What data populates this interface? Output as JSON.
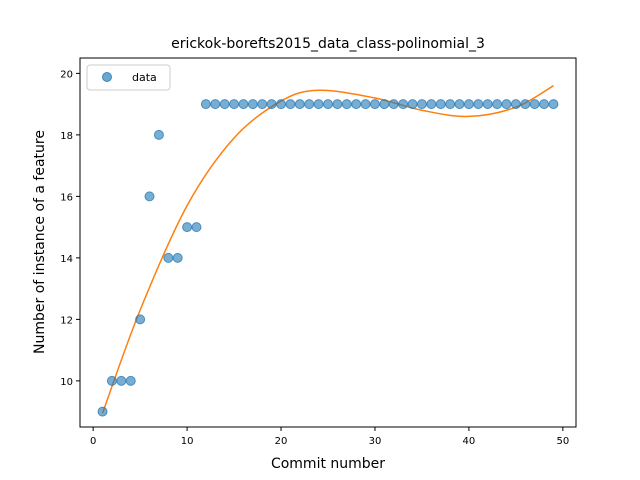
{
  "chart_data": {
    "type": "scatter",
    "title": "erickok-borefts2015_data_class-polinomial_3",
    "xlabel": "Commit number",
    "ylabel": "Number of instance of a feature",
    "xlim": [
      -1.4,
      51.4
    ],
    "ylim": [
      8.5,
      20.5
    ],
    "xticks": [
      0,
      10,
      20,
      30,
      40,
      50
    ],
    "yticks": [
      10,
      12,
      14,
      16,
      18,
      20
    ],
    "legend": {
      "position": "top-left",
      "entries": [
        "data"
      ]
    },
    "series": [
      {
        "name": "data",
        "kind": "scatter",
        "color": "#1f77b4",
        "x": [
          1,
          2,
          3,
          4,
          5,
          6,
          7,
          8,
          9,
          10,
          11,
          12,
          13,
          14,
          15,
          16,
          17,
          18,
          19,
          20,
          21,
          22,
          23,
          24,
          25,
          26,
          27,
          28,
          29,
          30,
          31,
          32,
          33,
          34,
          35,
          36,
          37,
          38,
          39,
          40,
          41,
          42,
          43,
          44,
          45,
          46,
          47,
          48,
          49
        ],
        "y": [
          9,
          10,
          10,
          10,
          12,
          16,
          18,
          14,
          14,
          15,
          15,
          19,
          19,
          19,
          19,
          19,
          19,
          19,
          19,
          19,
          19,
          19,
          19,
          19,
          19,
          19,
          19,
          19,
          19,
          19,
          19,
          19,
          19,
          19,
          19,
          19,
          19,
          19,
          19,
          19,
          19,
          19,
          19,
          19,
          19,
          19,
          19,
          19,
          19
        ]
      },
      {
        "kind": "fit",
        "color": "#ff7f0e",
        "x": [
          1,
          5,
          10,
          15,
          20,
          24,
          30,
          35,
          40,
          45,
          49
        ],
        "y": [
          8.95,
          12.3,
          15.7,
          17.9,
          19.1,
          19.45,
          19.2,
          18.8,
          18.6,
          18.9,
          19.6
        ]
      }
    ]
  }
}
